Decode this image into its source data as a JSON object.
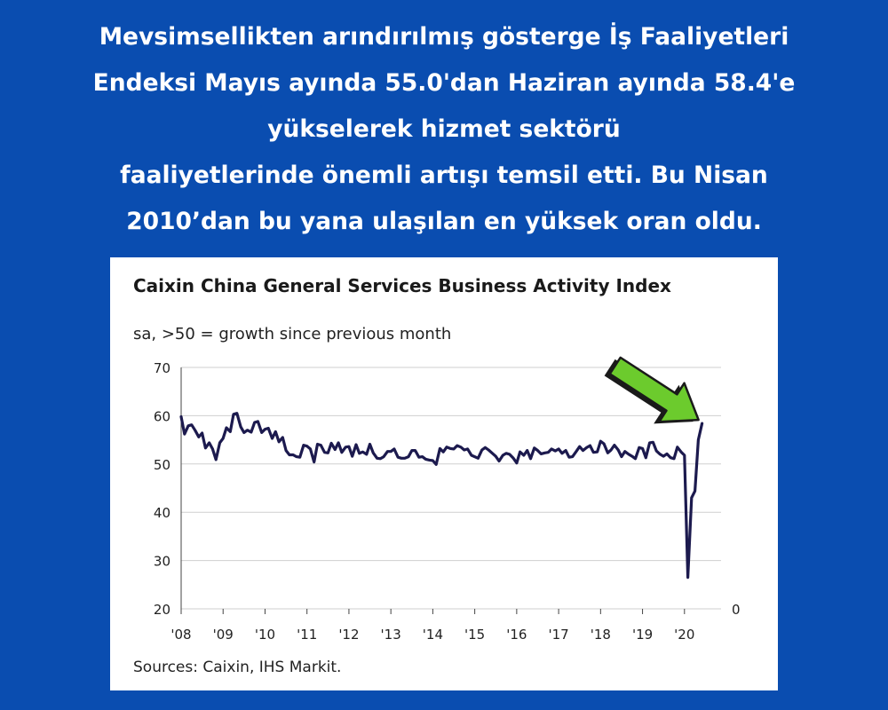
{
  "headline": {
    "lines": [
      "Mevsimsellikten arındırılmış gösterge İş Faaliyetleri",
      "Endeksi Mayıs ayında 55.0'dan Haziran ayında 58.4'e",
      "yükselerek hizmet sektörü",
      "faaliyetlerinde önemli artışı temsil etti. Bu Nisan",
      "2010’dan bu yana ulaşılan en yüksek oran oldu."
    ]
  },
  "colors": {
    "background": "#0a4db0",
    "card": "#ffffff",
    "line": "#1c1a4e",
    "arrow": "#6ccb2d",
    "arrow_outline": "#1a1a1a"
  },
  "chart_data": {
    "type": "line",
    "title": "Caixin China General Services Business Activity Index",
    "subtitle": "sa, >50 = growth since previous month",
    "source": "Sources: Caixin, IHS Markit.",
    "ylim": [
      20,
      70
    ],
    "xlim": [
      2008.0,
      2020.5
    ],
    "yticks": [
      "70",
      "60",
      "50",
      "40",
      "30",
      "20"
    ],
    "ytick_values": [
      70,
      60,
      50,
      40,
      30,
      20
    ],
    "right_axis_label": "0",
    "xticks": [
      "'08",
      "'09",
      "'10",
      "'11",
      "'12",
      "'13",
      "'14",
      "'15",
      "'16",
      "'17",
      "'18",
      "'19",
      "'20"
    ],
    "xtick_values": [
      2008,
      2009,
      2010,
      2011,
      2012,
      2013,
      2014,
      2015,
      2016,
      2017,
      2018,
      2019,
      2020
    ],
    "grid": "horizontal",
    "annotation": "green-arrow-pointing-to-latest-value",
    "series": [
      {
        "x": [
          2008.0,
          2008.08,
          2008.17,
          2008.25,
          2008.33,
          2008.42,
          2008.5,
          2008.58,
          2008.67,
          2008.75,
          2008.83,
          2008.92,
          2009.0,
          2009.08,
          2009.17,
          2009.25,
          2009.33,
          2009.42,
          2009.5,
          2009.58,
          2009.67,
          2009.75,
          2009.83,
          2009.92,
          2010.0,
          2010.08,
          2010.17,
          2010.25,
          2010.33,
          2010.42,
          2010.5,
          2010.58,
          2010.67,
          2010.75,
          2010.83,
          2010.92,
          2011.0,
          2011.08,
          2011.17,
          2011.25,
          2011.33,
          2011.42,
          2011.5,
          2011.58,
          2011.67,
          2011.75,
          2011.83,
          2011.92,
          2012.0,
          2012.08,
          2012.17,
          2012.25,
          2012.33,
          2012.42,
          2012.5,
          2012.58,
          2012.67,
          2012.75,
          2012.83,
          2012.92,
          2013.0,
          2013.08,
          2013.17,
          2013.25,
          2013.33,
          2013.42,
          2013.5,
          2013.58,
          2013.67,
          2013.75,
          2013.83,
          2013.92,
          2014.0,
          2014.08,
          2014.17,
          2014.25,
          2014.33,
          2014.42,
          2014.5,
          2014.58,
          2014.67,
          2014.75,
          2014.83,
          2014.92,
          2015.0,
          2015.08,
          2015.17,
          2015.25,
          2015.33,
          2015.42,
          2015.5,
          2015.58,
          2015.67,
          2015.75,
          2015.83,
          2015.92,
          2016.0,
          2016.08,
          2016.17,
          2016.25,
          2016.33,
          2016.42,
          2016.5,
          2016.58,
          2016.67,
          2016.75,
          2016.83,
          2016.92,
          2017.0,
          2017.08,
          2017.17,
          2017.25,
          2017.33,
          2017.42,
          2017.5,
          2017.58,
          2017.67,
          2017.75,
          2017.83,
          2017.92,
          2018.0,
          2018.08,
          2018.17,
          2018.25,
          2018.33,
          2018.42,
          2018.5,
          2018.58,
          2018.67,
          2018.75,
          2018.83,
          2018.92,
          2019.0,
          2019.08,
          2019.17,
          2019.25,
          2019.33,
          2019.42,
          2019.5,
          2019.58,
          2019.67,
          2019.75,
          2019.83,
          2019.92,
          2020.0,
          2020.08,
          2020.17,
          2020.25,
          2020.33,
          2020.42
        ],
        "y": [
          59.8,
          56.2,
          57.9,
          58.1,
          57.0,
          55.6,
          56.4,
          53.3,
          54.4,
          53.1,
          50.9,
          54.4,
          55.3,
          57.5,
          56.7,
          60.3,
          60.5,
          57.7,
          56.5,
          57.0,
          56.6,
          58.6,
          58.8,
          56.5,
          57.2,
          57.4,
          55.3,
          56.7,
          54.6,
          55.5,
          52.8,
          51.9,
          51.9,
          51.5,
          51.4,
          53.9,
          53.7,
          53.1,
          50.4,
          54.1,
          53.9,
          52.4,
          52.3,
          54.3,
          53.0,
          54.4,
          52.4,
          53.5,
          53.6,
          51.6,
          54.0,
          52.2,
          52.5,
          52.0,
          54.1,
          52.3,
          51.2,
          51.1,
          51.5,
          52.6,
          52.6,
          53.1,
          51.4,
          51.2,
          51.2,
          51.5,
          52.8,
          52.8,
          51.4,
          51.5,
          51.0,
          50.8,
          50.7,
          49.9,
          53.2,
          52.5,
          53.5,
          53.2,
          53.1,
          53.8,
          53.5,
          52.9,
          53.1,
          51.8,
          51.5,
          51.2,
          52.9,
          53.4,
          52.9,
          52.2,
          51.6,
          50.6,
          51.8,
          52.2,
          52.0,
          51.2,
          50.2,
          52.5,
          51.8,
          52.8,
          51.1,
          53.3,
          52.8,
          52.1,
          52.3,
          52.4,
          53.1,
          52.7,
          53.1,
          52.2,
          52.8,
          51.4,
          51.5,
          52.6,
          53.6,
          52.8,
          53.4,
          53.8,
          52.4,
          52.5,
          54.7,
          54.2,
          52.3,
          52.9,
          53.9,
          52.9,
          51.5,
          52.6,
          52.0,
          51.6,
          51.1,
          53.4,
          53.2,
          51.3,
          54.4,
          54.5,
          52.7,
          52.0,
          51.6,
          52.1,
          51.3,
          51.1,
          53.5,
          52.5,
          51.8,
          26.5,
          43.0,
          44.4,
          55.0,
          58.4
        ]
      }
    ]
  }
}
